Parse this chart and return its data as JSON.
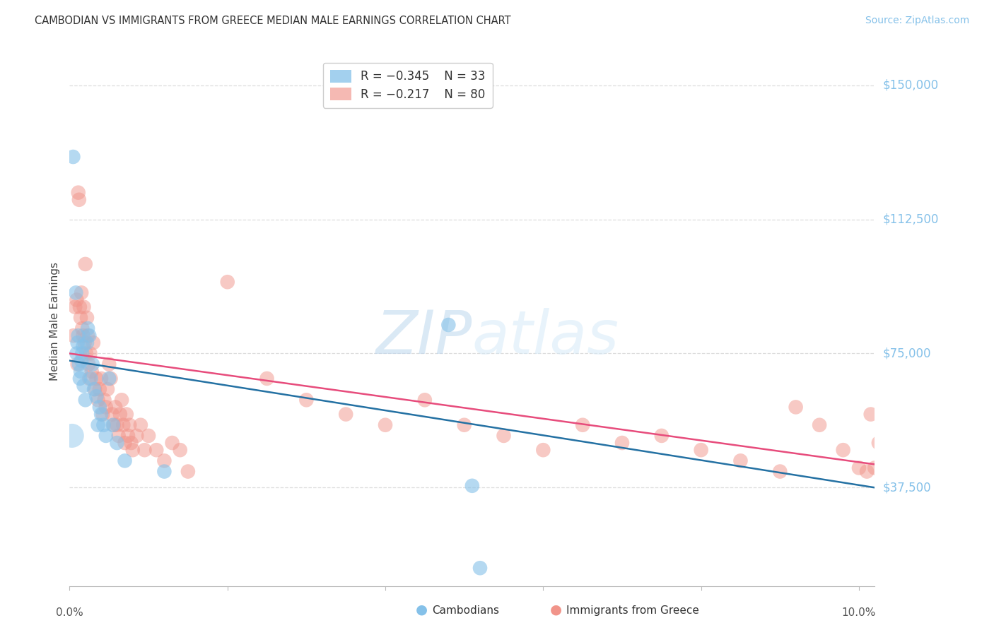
{
  "title": "CAMBODIAN VS IMMIGRANTS FROM GREECE MEDIAN MALE EARNINGS CORRELATION CHART",
  "source": "Source: ZipAtlas.com",
  "ylabel": "Median Male Earnings",
  "ytick_labels": [
    "$37,500",
    "$75,000",
    "$112,500",
    "$150,000"
  ],
  "ytick_values": [
    37500,
    75000,
    112500,
    150000
  ],
  "ymin": 10000,
  "ymax": 158000,
  "xmin": 0.0,
  "xmax": 0.102,
  "blue_color": "#85C1E9",
  "pink_color": "#F1948A",
  "blue_line_color": "#2471A3",
  "pink_line_color": "#E74C7C",
  "grid_color": "#DDDDDD",
  "background_color": "#FFFFFF",
  "blue_line_x": [
    0.0,
    0.102
  ],
  "blue_line_y": [
    73000,
    37500
  ],
  "pink_line_x": [
    0.0,
    0.102
  ],
  "pink_line_y": [
    75000,
    44000
  ],
  "cambodian_points": [
    [
      0.00045,
      130000
    ],
    [
      0.0008,
      92000
    ],
    [
      0.0009,
      75000
    ],
    [
      0.001,
      78000
    ],
    [
      0.0011,
      80000
    ],
    [
      0.0012,
      72000
    ],
    [
      0.0013,
      68000
    ],
    [
      0.0014,
      70000
    ],
    [
      0.0015,
      73000
    ],
    [
      0.0016,
      75000
    ],
    [
      0.0017,
      77000
    ],
    [
      0.0018,
      66000
    ],
    [
      0.002,
      62000
    ],
    [
      0.0022,
      78000
    ],
    [
      0.0023,
      82000
    ],
    [
      0.0025,
      80000
    ],
    [
      0.0027,
      68000
    ],
    [
      0.0029,
      72000
    ],
    [
      0.0031,
      65000
    ],
    [
      0.0034,
      63000
    ],
    [
      0.0036,
      55000
    ],
    [
      0.0038,
      60000
    ],
    [
      0.004,
      58000
    ],
    [
      0.0043,
      55000
    ],
    [
      0.0046,
      52000
    ],
    [
      0.005,
      68000
    ],
    [
      0.0055,
      55000
    ],
    [
      0.006,
      50000
    ],
    [
      0.007,
      45000
    ],
    [
      0.012,
      42000
    ],
    [
      0.048,
      83000
    ],
    [
      0.051,
      38000
    ],
    [
      0.052,
      15000
    ]
  ],
  "cambodian_big_point": [
    0.0003,
    52000,
    600
  ],
  "greece_points": [
    [
      0.0005,
      80000
    ],
    [
      0.0007,
      88000
    ],
    [
      0.0009,
      90000
    ],
    [
      0.001,
      72000
    ],
    [
      0.0011,
      120000
    ],
    [
      0.0012,
      118000
    ],
    [
      0.0013,
      88000
    ],
    [
      0.0014,
      85000
    ],
    [
      0.0015,
      92000
    ],
    [
      0.0016,
      82000
    ],
    [
      0.0017,
      80000
    ],
    [
      0.0018,
      88000
    ],
    [
      0.0019,
      78000
    ],
    [
      0.002,
      100000
    ],
    [
      0.0021,
      75000
    ],
    [
      0.0022,
      85000
    ],
    [
      0.0023,
      80000
    ],
    [
      0.0024,
      72000
    ],
    [
      0.0025,
      68000
    ],
    [
      0.0026,
      75000
    ],
    [
      0.0028,
      70000
    ],
    [
      0.003,
      78000
    ],
    [
      0.0032,
      65000
    ],
    [
      0.0034,
      68000
    ],
    [
      0.0036,
      62000
    ],
    [
      0.0038,
      65000
    ],
    [
      0.004,
      68000
    ],
    [
      0.0042,
      58000
    ],
    [
      0.0044,
      62000
    ],
    [
      0.0046,
      60000
    ],
    [
      0.0048,
      65000
    ],
    [
      0.005,
      72000
    ],
    [
      0.0052,
      68000
    ],
    [
      0.0054,
      58000
    ],
    [
      0.0056,
      55000
    ],
    [
      0.0058,
      60000
    ],
    [
      0.006,
      55000
    ],
    [
      0.0062,
      52000
    ],
    [
      0.0064,
      58000
    ],
    [
      0.0066,
      62000
    ],
    [
      0.0068,
      55000
    ],
    [
      0.007,
      50000
    ],
    [
      0.0072,
      58000
    ],
    [
      0.0074,
      52000
    ],
    [
      0.0076,
      55000
    ],
    [
      0.0078,
      50000
    ],
    [
      0.008,
      48000
    ],
    [
      0.0085,
      52000
    ],
    [
      0.009,
      55000
    ],
    [
      0.0095,
      48000
    ],
    [
      0.01,
      52000
    ],
    [
      0.011,
      48000
    ],
    [
      0.012,
      45000
    ],
    [
      0.013,
      50000
    ],
    [
      0.014,
      48000
    ],
    [
      0.015,
      42000
    ],
    [
      0.02,
      95000
    ],
    [
      0.025,
      68000
    ],
    [
      0.03,
      62000
    ],
    [
      0.035,
      58000
    ],
    [
      0.04,
      55000
    ],
    [
      0.045,
      62000
    ],
    [
      0.05,
      55000
    ],
    [
      0.055,
      52000
    ],
    [
      0.06,
      48000
    ],
    [
      0.065,
      55000
    ],
    [
      0.07,
      50000
    ],
    [
      0.075,
      52000
    ],
    [
      0.08,
      48000
    ],
    [
      0.085,
      45000
    ],
    [
      0.09,
      42000
    ],
    [
      0.092,
      60000
    ],
    [
      0.095,
      55000
    ],
    [
      0.098,
      48000
    ],
    [
      0.1,
      43000
    ],
    [
      0.101,
      42000
    ],
    [
      0.1015,
      58000
    ],
    [
      0.102,
      43000
    ],
    [
      0.1025,
      50000
    ]
  ]
}
